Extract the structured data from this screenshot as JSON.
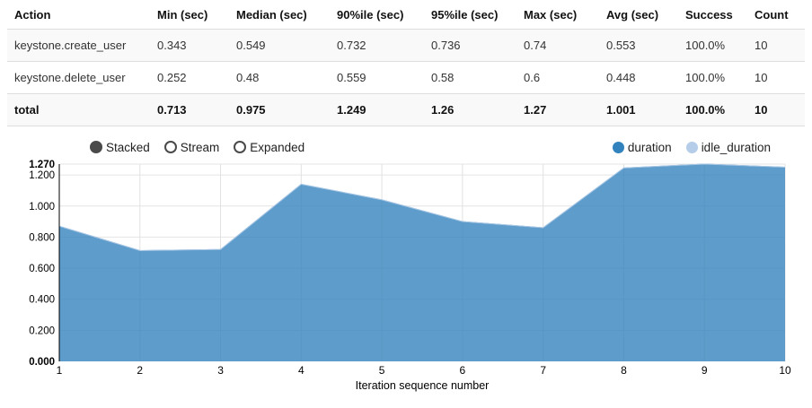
{
  "table": {
    "columns": [
      "Action",
      "Min (sec)",
      "Median (sec)",
      "90%ile (sec)",
      "95%ile (sec)",
      "Max (sec)",
      "Avg (sec)",
      "Success",
      "Count"
    ],
    "rows": [
      {
        "cells": [
          "keystone.create_user",
          "0.343",
          "0.549",
          "0.732",
          "0.736",
          "0.74",
          "0.553",
          "100.0%",
          "10"
        ]
      },
      {
        "cells": [
          "keystone.delete_user",
          "0.252",
          "0.48",
          "0.559",
          "0.58",
          "0.6",
          "0.448",
          "100.0%",
          "10"
        ]
      },
      {
        "cells": [
          "total",
          "0.713",
          "0.975",
          "1.249",
          "1.26",
          "1.27",
          "1.001",
          "100.0%",
          "10"
        ]
      }
    ]
  },
  "controls": {
    "options": [
      {
        "label": "Stacked",
        "selected": true
      },
      {
        "label": "Stream",
        "selected": false
      },
      {
        "label": "Expanded",
        "selected": false
      }
    ]
  },
  "legend": {
    "items": [
      {
        "label": "duration",
        "color": "#3182bd"
      },
      {
        "label": "idle_duration",
        "color": "#b5cde9"
      }
    ]
  },
  "chart_data": {
    "type": "area",
    "stacked": true,
    "x": [
      1,
      2,
      3,
      4,
      5,
      6,
      7,
      8,
      9,
      10
    ],
    "series": [
      {
        "name": "duration",
        "color": "#3182bd",
        "fill_opacity": 0.78,
        "values": [
          0.87,
          0.713,
          0.72,
          1.14,
          1.04,
          0.9,
          0.86,
          1.245,
          1.27,
          1.25
        ]
      },
      {
        "name": "idle_duration",
        "color": "#b5cde9",
        "fill_opacity": 0.78,
        "values": [
          0,
          0,
          0,
          0,
          0,
          0,
          0,
          0,
          0,
          0
        ]
      }
    ],
    "xlabel": "Iteration sequence number",
    "ylabel": "",
    "ylim": [
      0,
      1.27
    ],
    "grid": true,
    "legend_position": "top-right",
    "y_ticks": [
      {
        "label": "0.000",
        "value": 0,
        "bold": true
      },
      {
        "label": "0.200",
        "value": 0.2,
        "bold": false
      },
      {
        "label": "0.400",
        "value": 0.4,
        "bold": false
      },
      {
        "label": "0.600",
        "value": 0.6,
        "bold": false
      },
      {
        "label": "0.800",
        "value": 0.8,
        "bold": false
      },
      {
        "label": "1.000",
        "value": 1.0,
        "bold": false
      },
      {
        "label": "1.200",
        "value": 1.2,
        "bold": false
      },
      {
        "label": "1.270",
        "value": 1.27,
        "bold": true
      }
    ],
    "x_ticks": [
      "1",
      "2",
      "3",
      "4",
      "5",
      "6",
      "7",
      "8",
      "9",
      "10"
    ]
  }
}
